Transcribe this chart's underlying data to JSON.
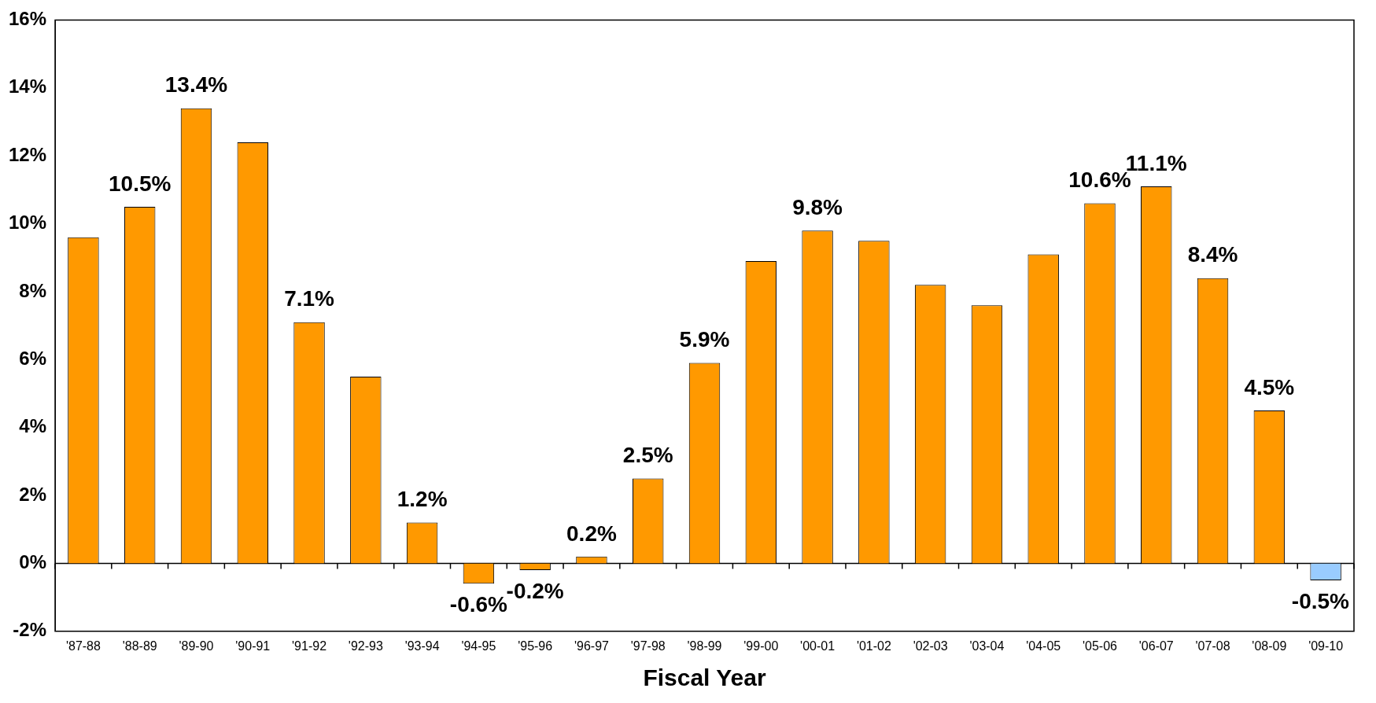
{
  "chart_data": {
    "type": "bar",
    "xlabel": "Fiscal Year",
    "categories": [
      "'87-88",
      "'88-89",
      "'89-90",
      "'90-91",
      "'91-92",
      "'92-93",
      "'93-94",
      "'94-95",
      "'95-96",
      "'96-97",
      "'97-98",
      "'98-99",
      "'99-00",
      "'00-01",
      "'01-02",
      "'02-03",
      "'03-04",
      "'04-05",
      "'05-06",
      "'06-07",
      "'07-08",
      "'08-09",
      "'09-10"
    ],
    "values": [
      9.6,
      10.5,
      13.4,
      12.4,
      7.1,
      5.5,
      1.2,
      -0.6,
      -0.2,
      0.2,
      2.5,
      5.9,
      8.9,
      9.8,
      9.5,
      8.2,
      7.6,
      9.1,
      10.6,
      11.1,
      8.4,
      4.5,
      -0.5
    ],
    "value_labels": [
      null,
      "10.5%",
      "13.4%",
      null,
      "7.1%",
      null,
      "1.2%",
      "-0.6%",
      "-0.2%",
      "0.2%",
      "2.5%",
      "5.9%",
      null,
      "9.8%",
      null,
      null,
      null,
      null,
      "10.6%",
      "11.1%",
      "8.4%",
      "4.5%",
      "-0.5%"
    ],
    "colors": [
      "#ff9900",
      "#ff9900",
      "#ff9900",
      "#ff9900",
      "#ff9900",
      "#ff9900",
      "#ff9900",
      "#ff9900",
      "#ff9900",
      "#ff9900",
      "#ff9900",
      "#ff9900",
      "#ff9900",
      "#ff9900",
      "#ff9900",
      "#ff9900",
      "#ff9900",
      "#ff9900",
      "#ff9900",
      "#ff9900",
      "#ff9900",
      "#ff9900",
      "#99ccff"
    ],
    "ylim": [
      -2,
      16
    ],
    "yticks": [
      {
        "value": -2,
        "label": "-2%"
      },
      {
        "value": 0,
        "label": "0%"
      },
      {
        "value": 2,
        "label": "2%"
      },
      {
        "value": 4,
        "label": "4%"
      },
      {
        "value": 6,
        "label": "6%"
      },
      {
        "value": 8,
        "label": "8%"
      },
      {
        "value": 10,
        "label": "10%"
      },
      {
        "value": 12,
        "label": "12%"
      },
      {
        "value": 14,
        "label": "14%"
      },
      {
        "value": 16,
        "label": "16%"
      }
    ],
    "ref_lines": [
      {
        "axis": "y",
        "value": 0,
        "color": "#000000"
      }
    ],
    "grid": false,
    "legend": false
  }
}
